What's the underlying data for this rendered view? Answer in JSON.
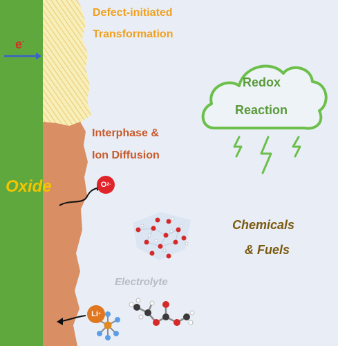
{
  "labels": {
    "defect_line1": "Defect-initiated",
    "defect_line2": "Transformation",
    "electron": "e",
    "electron_sup": "-",
    "interphase_line1": "Interphase &",
    "interphase_line2": "Ion Diffusion",
    "oxide": "Oxide",
    "oxygen_ion": "O",
    "oxygen_ion_sup": "2-",
    "redox_line1": "Redox",
    "redox_line2": "Reaction",
    "chemicals_line1": "Chemicals",
    "chemicals_line2": "& Fuels",
    "electrolyte": "Electrolyte",
    "lithium_ion": "Li",
    "lithium_ion_sup": "+"
  },
  "colors": {
    "background": "#e9eef6",
    "oxide_bar": "#5fa83e",
    "defect_region": "#f6e7a5",
    "interphase_region": "#d98e63",
    "cloud_stroke": "#6bbf4a",
    "oxygen_badge": "#e0242a",
    "lithium_badge": "#e0771f",
    "electron_arrow": "#3a62c8"
  },
  "icons": {
    "cloud": "cloud-icon",
    "lightning": "lightning-icon",
    "molecule": "molecule-icon"
  }
}
